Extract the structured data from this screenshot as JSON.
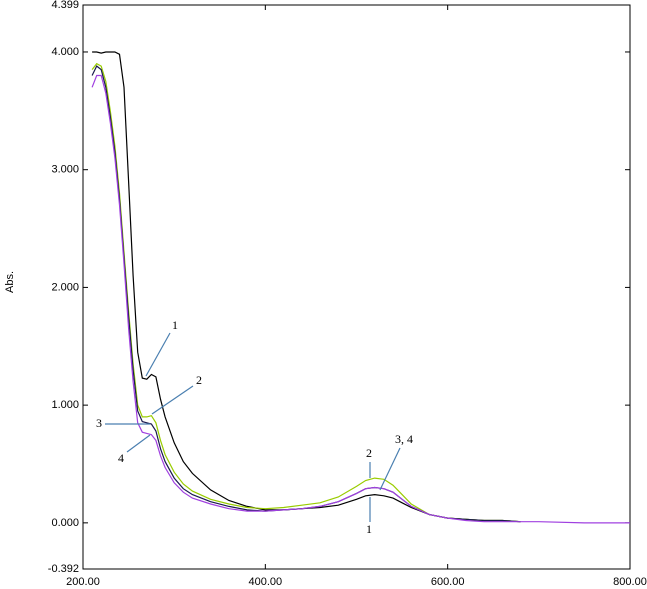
{
  "chart_data": {
    "type": "line",
    "ylabel": "Abs.",
    "x": [
      210,
      215,
      220,
      225,
      230,
      235,
      240,
      245,
      250,
      255,
      260,
      265,
      270,
      275,
      280,
      285,
      290,
      300,
      310,
      320,
      340,
      360,
      380,
      400,
      420,
      440,
      460,
      480,
      500,
      510,
      520,
      530,
      540,
      550,
      560,
      580,
      600,
      620,
      640,
      660,
      680,
      700,
      750,
      800
    ],
    "series": [
      {
        "color": "#000000",
        "values": [
          4.0,
          4.0,
          3.99,
          4.0,
          4.0,
          4.0,
          3.98,
          3.7,
          2.9,
          2.1,
          1.45,
          1.23,
          1.22,
          1.26,
          1.24,
          1.05,
          0.9,
          0.68,
          0.52,
          0.42,
          0.28,
          0.19,
          0.14,
          0.11,
          0.11,
          0.12,
          0.13,
          0.15,
          0.2,
          0.23,
          0.24,
          0.23,
          0.21,
          0.17,
          0.13,
          0.07,
          0.04,
          0.03,
          0.02,
          0.02,
          0.01,
          null,
          null,
          null
        ]
      },
      {
        "color": "#99cc00",
        "values": [
          3.85,
          3.9,
          3.88,
          3.75,
          3.5,
          3.2,
          2.8,
          2.3,
          1.8,
          1.35,
          1.0,
          0.9,
          0.9,
          0.91,
          0.85,
          0.7,
          0.58,
          0.43,
          0.33,
          0.27,
          0.2,
          0.16,
          0.13,
          0.12,
          0.13,
          0.15,
          0.17,
          0.22,
          0.31,
          0.36,
          0.38,
          0.37,
          0.32,
          0.24,
          0.16,
          0.07,
          0.04,
          0.03,
          0.02,
          0.02,
          0.01,
          null,
          null,
          null
        ]
      },
      {
        "color": "#1a1a4e",
        "values": [
          3.8,
          3.88,
          3.85,
          3.7,
          3.45,
          3.15,
          2.75,
          2.25,
          1.75,
          1.3,
          0.95,
          0.86,
          0.85,
          0.84,
          0.78,
          0.63,
          0.52,
          0.38,
          0.29,
          0.24,
          0.18,
          0.14,
          0.11,
          0.1,
          0.11,
          0.12,
          0.14,
          0.18,
          0.25,
          0.29,
          0.3,
          0.29,
          0.26,
          0.2,
          0.14,
          0.07,
          0.04,
          0.03,
          0.02,
          0.02,
          0.01,
          null,
          null,
          null
        ]
      },
      {
        "color": "#a040e0",
        "values": [
          3.7,
          3.8,
          3.8,
          3.65,
          3.4,
          3.1,
          2.7,
          2.2,
          1.65,
          1.2,
          0.85,
          0.77,
          0.76,
          0.75,
          0.7,
          0.57,
          0.47,
          0.34,
          0.26,
          0.21,
          0.16,
          0.12,
          0.1,
          0.1,
          0.11,
          0.12,
          0.14,
          0.18,
          0.25,
          0.29,
          0.3,
          0.29,
          0.26,
          0.2,
          0.14,
          0.07,
          0.04,
          0.02,
          0.01,
          0.01,
          0.01,
          0.01,
          0.0,
          0.0
        ]
      }
    ],
    "xlim": [
      200,
      800
    ],
    "xticks": [
      {
        "value": 200,
        "label": "200.00"
      },
      {
        "value": 400,
        "label": "400.00"
      },
      {
        "value": 600,
        "label": "600.00"
      },
      {
        "value": 800,
        "label": "800.00"
      }
    ],
    "ylim": [
      -0.392,
      4.399
    ],
    "yticks": [
      4.399,
      {
        "value": 4,
        "label": "4.000"
      },
      {
        "value": 3,
        "label": "3.000"
      },
      {
        "value": 2,
        "label": "2.000"
      },
      {
        "value": 1,
        "label": "1.000"
      },
      {
        "value": 0,
        "label": "0.000"
      },
      -0.392
    ],
    "annotations": [
      "1",
      "2",
      "3",
      "4",
      "2",
      "3, 4",
      "1"
    ]
  }
}
